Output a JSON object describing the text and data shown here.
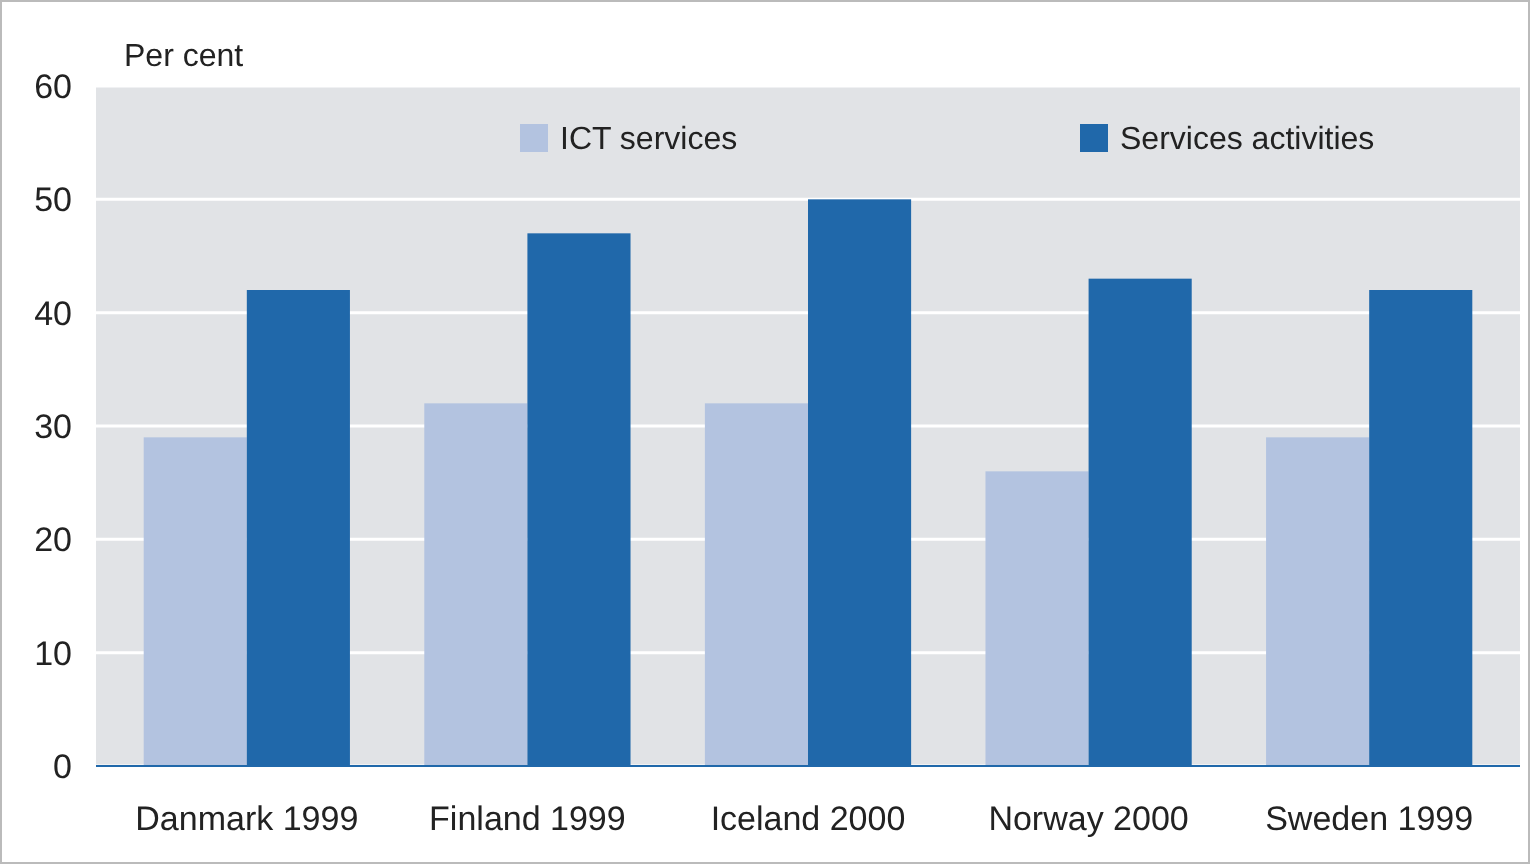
{
  "chart_data": {
    "type": "bar",
    "ylabel": "Per cent",
    "categories": [
      "Danmark 1999",
      "Finland 1999",
      "Iceland 2000",
      "Norway 2000",
      "Sweden 1999"
    ],
    "series": [
      {
        "name": "ICT services",
        "color": "#b3c3e0",
        "values": [
          29,
          32,
          32,
          26,
          29
        ]
      },
      {
        "name": "Services activities",
        "color": "#2068aa",
        "values": [
          42,
          47,
          50,
          43,
          42
        ]
      }
    ],
    "ylim": [
      0,
      60
    ],
    "yticks": [
      0,
      10,
      20,
      30,
      40,
      50,
      60
    ],
    "grid": "y",
    "legend": "top"
  }
}
